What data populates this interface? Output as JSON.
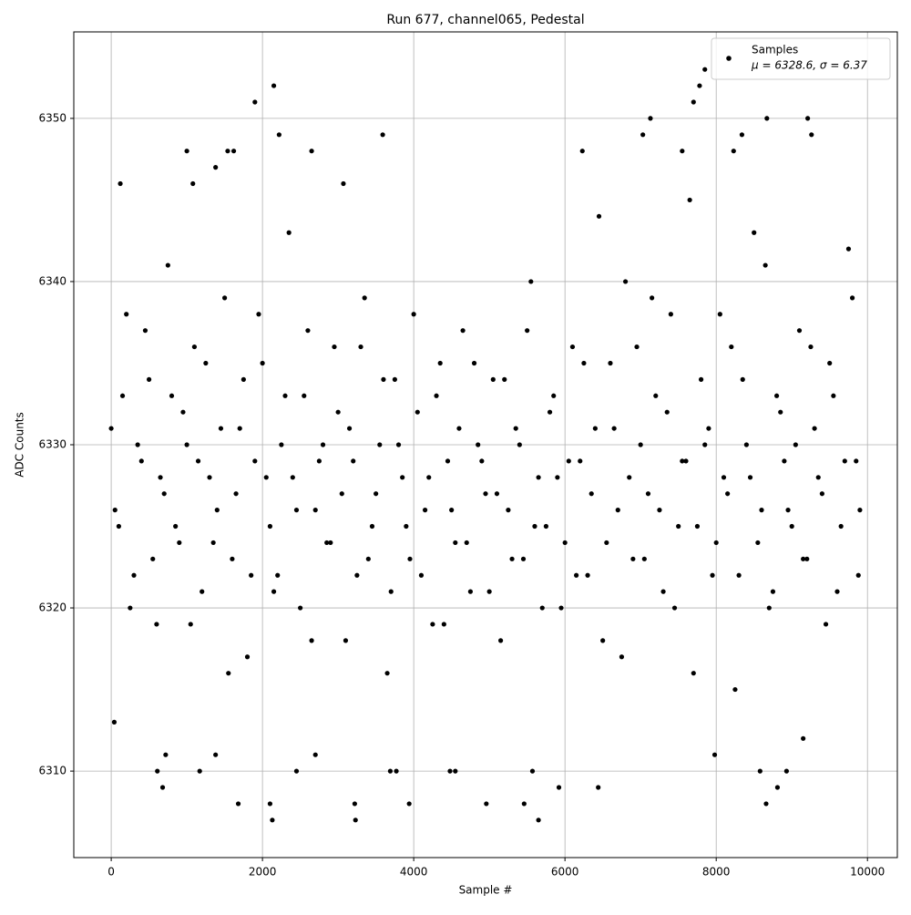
{
  "chart_data": {
    "type": "scatter",
    "title": "Run 677, channel065, Pedestal",
    "xlabel": "Sample #",
    "ylabel": "ADC Counts",
    "xlim": [
      -495,
      10395
    ],
    "ylim": [
      6304.7,
      6355.3
    ],
    "xticks": [
      0,
      2000,
      4000,
      6000,
      8000,
      10000
    ],
    "yticks": [
      6310,
      6320,
      6330,
      6340,
      6350
    ],
    "grid": true,
    "legend": "upper right",
    "legend_note": "μ = 6328.6, σ = 6.37",
    "x": [
      0,
      100,
      200,
      300,
      400,
      500,
      600,
      700,
      800,
      900,
      1000,
      1100,
      1200,
      1300,
      1400,
      1500,
      1600,
      1700,
      1800,
      1900,
      2000,
      2100,
      2200,
      2300,
      2400,
      2500,
      2600,
      2700,
      2800,
      2900,
      3000,
      3100,
      3200,
      3300,
      3400,
      3500,
      3600,
      3700,
      3800,
      3900,
      4000,
      4100,
      4200,
      4300,
      4400,
      4500,
      4600,
      4700,
      4800,
      4900,
      5000,
      5100,
      5200,
      5300,
      5400,
      5500,
      5600,
      5700,
      5800,
      5900,
      6000,
      6100,
      6200,
      6300,
      6400,
      6500,
      6600,
      6700,
      6800,
      6900,
      7000,
      7100,
      7200,
      7300,
      7400,
      7500,
      7600,
      7700,
      7800,
      7900,
      8000,
      8100,
      8200,
      8300,
      8400,
      8500,
      8600,
      8700,
      8800,
      8900,
      9000,
      9100,
      9200,
      9300,
      9400,
      9500,
      9600,
      9700,
      9800,
      9900,
      50,
      150,
      250,
      350,
      450,
      550,
      650,
      750,
      850,
      950,
      1050,
      1150,
      1250,
      1350,
      1450,
      1550,
      1650,
      1750,
      1850,
      1950,
      2050,
      2150,
      2250,
      2350,
      2450,
      2550,
      2650,
      2750,
      2850,
      2950,
      3050,
      3150,
      3250,
      3350,
      3450,
      3550,
      3650,
      3750,
      3850,
      3950,
      4050,
      4150,
      4250,
      4350,
      4450,
      4550,
      4650,
      4750,
      4850,
      4950,
      5050,
      5150,
      5250,
      5350,
      5450,
      5550,
      5650,
      5750,
      5850,
      5950,
      6050,
      6150,
      6250,
      6350,
      6450,
      6550,
      6650,
      6750,
      6850,
      6950,
      7050,
      7150,
      7250,
      7350,
      7450,
      7550,
      7650,
      7750,
      7850,
      7950,
      8050,
      8150,
      8250,
      8350,
      8450,
      8550,
      8650,
      8750,
      8850,
      8950,
      9050,
      9150,
      9250,
      9350,
      9450,
      9550,
      9650,
      9750,
      9850,
      9880,
      1900,
      2150,
      2220,
      7850,
      7780,
      7700,
      7130,
      8670,
      9210,
      1680,
      2100,
      2130,
      3220,
      3230,
      3940,
      4960,
      5460,
      5650,
      8660,
      610,
      680,
      1170,
      2450,
      3690,
      3770,
      4480,
      4550,
      5570,
      5920,
      6440,
      8580,
      8810,
      8930,
      40,
      1000,
      1540,
      1620,
      2650,
      3590,
      6230,
      7030,
      7550,
      8230,
      8340,
      9260,
      120,
      1080,
      1380,
      3070,
      720,
      1380,
      2700,
      7980,
      9150
    ],
    "series": [
      {
        "name": "Samples",
        "color": "#000000",
        "values": [
          6331,
          6325,
          6338,
          6322,
          6329,
          6334,
          6319,
          6327,
          6333,
          6324,
          6330,
          6336,
          6321,
          6328,
          6326,
          6339,
          6323,
          6331,
          6317,
          6329,
          6335,
          6325,
          6322,
          6333,
          6328,
          6320,
          6337,
          6326,
          6330,
          6324,
          6332,
          6318,
          6329,
          6336,
          6323,
          6327,
          6334,
          6321,
          6330,
          6325,
          6338,
          6322,
          6328,
          6333,
          6319,
          6326,
          6331,
          6324,
          6335,
          6329,
          6321,
          6327,
          6334,
          6323,
          6330,
          6337,
          6325,
          6320,
          6332,
          6328,
          6324,
          6336,
          6329,
          6322,
          6331,
          6318,
          6335,
          6326,
          6340,
          6323,
          6330,
          6327,
          6333,
          6321,
          6338,
          6325,
          6329,
          6316,
          6334,
          6331,
          6324,
          6328,
          6336,
          6322,
          6330,
          6343,
          6326,
          6320,
          6333,
          6329,
          6325,
          6337,
          6323,
          6331,
          6327,
          6335,
          6321,
          6329,
          6339,
          6326,
          6326,
          6333,
          6320,
          6330,
          6337,
          6323,
          6328,
          6341,
          6325,
          6332,
          6319,
          6329,
          6335,
          6324,
          6331,
          6316,
          6327,
          6334,
          6322,
          6338,
          6328,
          6321,
          6330,
          6343,
          6326,
          6333,
          6318,
          6329,
          6324,
          6336,
          6327,
          6331,
          6322,
          6339,
          6325,
          6330,
          6316,
          6334,
          6328,
          6323,
          6332,
          6326,
          6319,
          6335,
          6329,
          6324,
          6337,
          6321,
          6330,
          6327,
          6334,
          6318,
          6326,
          6331,
          6323,
          6340,
          6328,
          6325,
          6333,
          6320,
          6329,
          6322,
          6335,
          6327,
          6344,
          6324,
          6331,
          6317,
          6328,
          6336,
          6323,
          6339,
          6326,
          6332,
          6320,
          6329,
          6345,
          6325,
          6330,
          6322,
          6338,
          6327,
          6315,
          6334,
          6328,
          6324,
          6341,
          6321,
          6332,
          6326,
          6330,
          6323,
          6336,
          6328,
          6319,
          6333,
          6325,
          6342,
          6329,
          6322,
          6351,
          6352,
          6349,
          6353,
          6352,
          6351,
          6350,
          6350,
          6350,
          6308,
          6308,
          6307,
          6308,
          6307,
          6308,
          6308,
          6308,
          6307,
          6308,
          6310,
          6309,
          6310,
          6310,
          6310,
          6310,
          6310,
          6310,
          6310,
          6309,
          6309,
          6310,
          6309,
          6310,
          6313,
          6348,
          6348,
          6348,
          6348,
          6349,
          6348,
          6349,
          6348,
          6348,
          6349,
          6349,
          6346,
          6346,
          6347,
          6346,
          6311,
          6311,
          6311,
          6311,
          6312
        ]
      }
    ]
  }
}
